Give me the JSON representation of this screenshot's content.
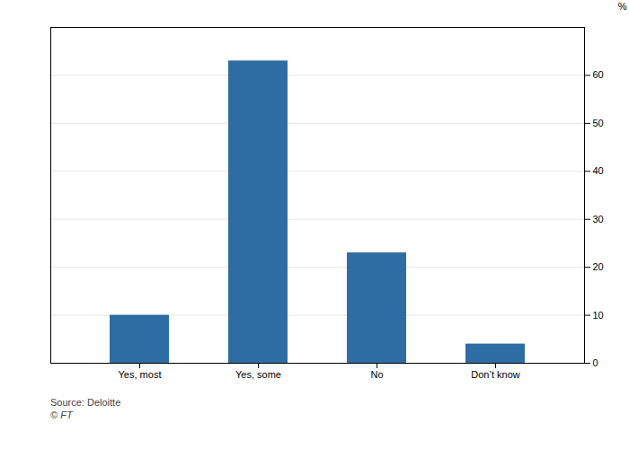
{
  "chart_data": {
    "type": "bar",
    "categories": [
      "Yes, most",
      "Yes, some",
      "No",
      "Don’t know"
    ],
    "values": [
      10,
      63,
      23,
      4
    ],
    "color": "#2e6da4",
    "ylabel": "%",
    "ylim": [
      0,
      70
    ],
    "yticks": [
      0,
      10,
      20,
      30,
      40,
      50,
      60
    ],
    "grid": true,
    "annotations": [
      "Source: Deloitte",
      "© FT"
    ]
  }
}
